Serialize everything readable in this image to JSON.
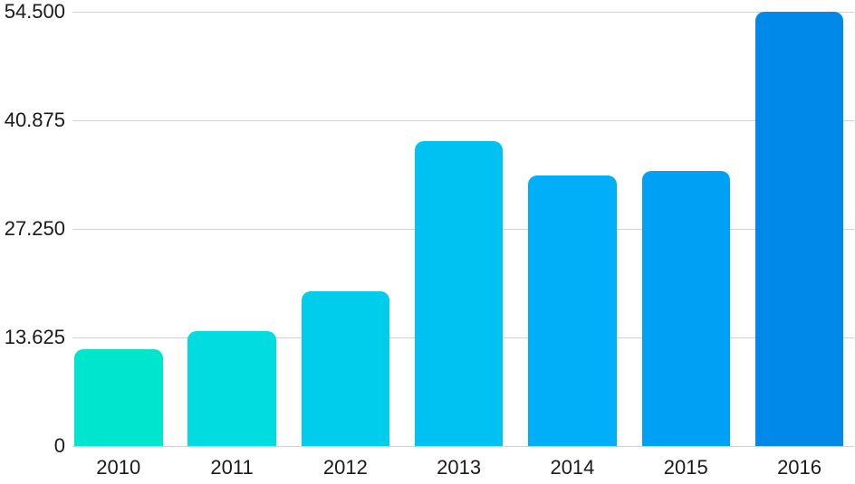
{
  "chart_data": {
    "type": "bar",
    "title": "",
    "xlabel": "",
    "ylabel": "",
    "categories": [
      "2010",
      "2011",
      "2012",
      "2013",
      "2014",
      "2015",
      "2016"
    ],
    "values": [
      12200,
      14450,
      19400,
      38300,
      33900,
      34500,
      54500
    ],
    "bar_colors": [
      "#00e5cd",
      "#00dcdf",
      "#00cdec",
      "#00c2f2",
      "#00aff7",
      "#00a1f4",
      "#0089e9"
    ],
    "ylim": [
      0,
      54500
    ],
    "yticks": [
      {
        "value": 0,
        "label": "0"
      },
      {
        "value": 13625,
        "label": "13.625"
      },
      {
        "value": 27250,
        "label": "27.250"
      },
      {
        "value": 40875,
        "label": "40.875"
      },
      {
        "value": 54500,
        "label": "54.500"
      }
    ],
    "grid": true,
    "legend": "none",
    "gridline_color": "#d0d0d0",
    "axis_label_color": "#1a1a1a",
    "background_color": "#ffffff"
  }
}
